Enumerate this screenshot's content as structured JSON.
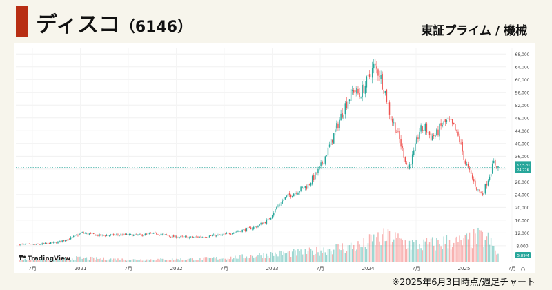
{
  "header": {
    "company": "ディスコ",
    "code": "（6146）",
    "market": "東証プライム / 機械"
  },
  "footnote": "※2025年6月3日時点/週足チャート",
  "colors": {
    "accent": "#b82e14",
    "up": "#26a69a",
    "down": "#ef5350",
    "last_price": "#26a69a"
  },
  "chart_data": {
    "type": "candlestick",
    "title": "",
    "watermark": "TradingView",
    "x_ticks": [
      "7月",
      "2021",
      "7月",
      "2022",
      "7月",
      "2023",
      "7月",
      "2024",
      "7月",
      "2025",
      "7月"
    ],
    "y_ticks": [
      8000,
      12000,
      16000,
      20000,
      24000,
      28000,
      32000,
      36000,
      40000,
      44000,
      48000,
      52000,
      56000,
      60000,
      64000,
      68000
    ],
    "y_tick_labels": [
      "8,000",
      "12,000",
      "16,000",
      "20,000",
      "24,000",
      "28,000",
      "32,000",
      "36,000",
      "40,000",
      "44,000",
      "48,000",
      "52,000",
      "56,000",
      "60,000",
      "64,000",
      "68,000"
    ],
    "ylim": [
      3000,
      70000
    ],
    "last_price": 32520,
    "last_price_label": "32,520",
    "last_volume_label": "24.22K",
    "volume_label": "5.89M",
    "close_anchors": [
      [
        0,
        8400
      ],
      [
        12,
        8300
      ],
      [
        26,
        9000
      ],
      [
        36,
        10400
      ],
      [
        44,
        12000
      ],
      [
        56,
        11200
      ],
      [
        72,
        11400
      ],
      [
        84,
        11300
      ],
      [
        96,
        11800
      ],
      [
        108,
        10800
      ],
      [
        120,
        10600
      ],
      [
        132,
        11000
      ],
      [
        142,
        11300
      ],
      [
        150,
        12300
      ],
      [
        158,
        13000
      ],
      [
        166,
        14000
      ],
      [
        174,
        16000
      ],
      [
        180,
        20000
      ],
      [
        186,
        23000
      ],
      [
        194,
        25000
      ],
      [
        202,
        27000
      ],
      [
        210,
        32000
      ],
      [
        216,
        38000
      ],
      [
        222,
        45000
      ],
      [
        228,
        52000
      ],
      [
        234,
        57000
      ],
      [
        238,
        55000
      ],
      [
        244,
        60000
      ],
      [
        248,
        64000
      ],
      [
        252,
        62000
      ],
      [
        256,
        56000
      ],
      [
        260,
        48000
      ],
      [
        264,
        44000
      ],
      [
        268,
        38000
      ],
      [
        272,
        32000
      ],
      [
        276,
        37000
      ],
      [
        280,
        44000
      ],
      [
        284,
        45000
      ],
      [
        288,
        42000
      ],
      [
        292,
        43000
      ],
      [
        296,
        46000
      ],
      [
        300,
        47000
      ],
      [
        304,
        45000
      ],
      [
        308,
        41000
      ],
      [
        312,
        34000
      ],
      [
        316,
        30000
      ],
      [
        320,
        26000
      ],
      [
        324,
        24000
      ],
      [
        328,
        29000
      ],
      [
        332,
        34000
      ],
      [
        335,
        32520
      ]
    ],
    "volume_anchors": [
      [
        0,
        0.5
      ],
      [
        40,
        0.8
      ],
      [
        80,
        0.5
      ],
      [
        120,
        0.6
      ],
      [
        150,
        0.9
      ],
      [
        180,
        1.6
      ],
      [
        200,
        1.8
      ],
      [
        220,
        2.6
      ],
      [
        240,
        3.1
      ],
      [
        250,
        4.3
      ],
      [
        260,
        4.6
      ],
      [
        270,
        3.6
      ],
      [
        280,
        3.2
      ],
      [
        290,
        3.4
      ],
      [
        300,
        3.9
      ],
      [
        310,
        3.6
      ],
      [
        320,
        4.6
      ],
      [
        328,
        4.2
      ],
      [
        335,
        1.4
      ]
    ]
  }
}
